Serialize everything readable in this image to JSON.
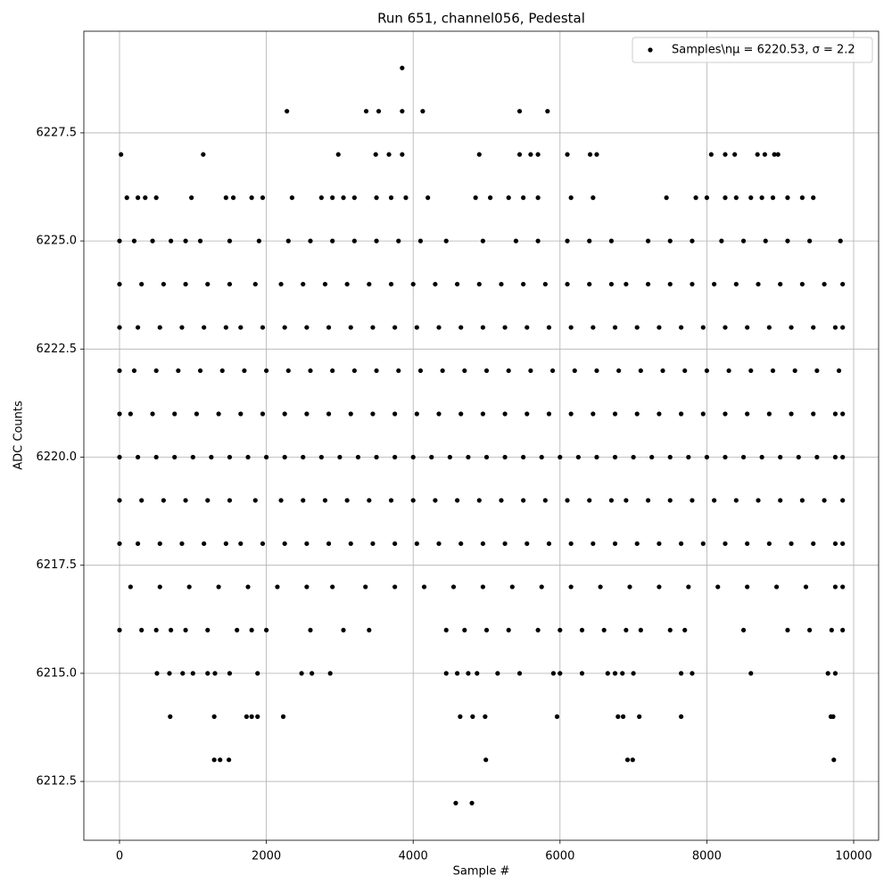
{
  "chart_data": {
    "type": "scatter",
    "title": "Run 651, channel056, Pedestal",
    "x_label": "Sample #",
    "y_label": "ADC Counts",
    "xlim": [
      -486,
      10340
    ],
    "ylim": [
      6211.14,
      6229.85
    ],
    "xticks": [
      0,
      2000,
      4000,
      6000,
      8000,
      10000
    ],
    "yticks": [
      6212.5,
      {
        "value": 6215,
        "label": "6215.0"
      },
      6217.5,
      {
        "value": 6220,
        "label": "6220.0"
      },
      6222.5,
      {
        "value": 6225,
        "label": "6225.0"
      },
      6227.5
    ],
    "grid": true,
    "legend_position": "upper right",
    "series": [
      {
        "name": "Samples\\nμ = 6220.53, σ = 2.2",
        "color": "#000000",
        "x": [
          3850,
          2280,
          3360,
          3530,
          3850,
          4130,
          5450,
          5830,
          20,
          1140,
          2980,
          3490,
          3670,
          3850,
          4900,
          5450,
          5600,
          5700,
          6100,
          6410,
          6500,
          8060,
          8250,
          8380,
          8690,
          8790,
          8920,
          8970,
          100,
          250,
          350,
          500,
          980,
          1450,
          1550,
          1800,
          1950,
          2350,
          2750,
          2900,
          3050,
          3200,
          3500,
          3700,
          3900,
          4200,
          4850,
          5050,
          5300,
          5500,
          5700,
          6150,
          6450,
          7450,
          7850,
          8000,
          8250,
          8400,
          8600,
          8750,
          8900,
          9100,
          9300,
          9450,
          0,
          200,
          450,
          700,
          900,
          1100,
          1500,
          1900,
          2300,
          2600,
          2900,
          3200,
          3500,
          3800,
          4100,
          4450,
          4950,
          5400,
          5700,
          6100,
          6400,
          6700,
          7200,
          7500,
          7800,
          8200,
          8500,
          8800,
          9100,
          9400,
          9820,
          0,
          300,
          600,
          900,
          1200,
          1500,
          1850,
          2200,
          2500,
          2800,
          3100,
          3400,
          3700,
          4000,
          4300,
          4600,
          4900,
          5200,
          5500,
          5800,
          6100,
          6400,
          6700,
          6900,
          7200,
          7500,
          7800,
          8100,
          8400,
          8700,
          9000,
          9300,
          9600,
          9850,
          0,
          250,
          550,
          850,
          1150,
          1450,
          1650,
          1950,
          2250,
          2550,
          2850,
          3150,
          3450,
          3750,
          4050,
          4350,
          4650,
          4950,
          5250,
          5550,
          5850,
          6150,
          6450,
          6750,
          7050,
          7350,
          7650,
          7950,
          8250,
          8550,
          8850,
          9150,
          9450,
          9750,
          9850,
          0,
          200,
          500,
          800,
          1100,
          1400,
          1700,
          2000,
          2300,
          2600,
          2900,
          3200,
          3500,
          3800,
          4100,
          4400,
          4700,
          5000,
          5300,
          5600,
          5900,
          6200,
          6500,
          6800,
          7100,
          7400,
          7700,
          8000,
          8300,
          8600,
          8900,
          9200,
          9500,
          9800,
          0,
          150,
          450,
          750,
          1050,
          1350,
          1650,
          1950,
          2250,
          2550,
          2850,
          3150,
          3450,
          3750,
          4050,
          4350,
          4650,
          4950,
          5250,
          5550,
          5850,
          6150,
          6450,
          6750,
          7050,
          7350,
          7650,
          7950,
          8250,
          8550,
          8850,
          9150,
          9450,
          9750,
          9850,
          0,
          250,
          500,
          750,
          1000,
          1250,
          1500,
          1750,
          2000,
          2250,
          2500,
          2750,
          3000,
          3250,
          3500,
          3750,
          4000,
          4250,
          4500,
          4750,
          5000,
          5250,
          5500,
          5750,
          6000,
          6250,
          6500,
          6750,
          7000,
          7250,
          7500,
          7750,
          8000,
          8250,
          8500,
          8750,
          9000,
          9250,
          9500,
          9750,
          9850,
          0,
          300,
          600,
          900,
          1200,
          1500,
          1850,
          2200,
          2500,
          2800,
          3100,
          3400,
          3700,
          4000,
          4300,
          4600,
          4900,
          5200,
          5500,
          5800,
          6100,
          6400,
          6700,
          6900,
          7200,
          7500,
          7800,
          8100,
          8400,
          8700,
          9000,
          9300,
          9600,
          9850,
          0,
          250,
          550,
          850,
          1150,
          1450,
          1650,
          1950,
          2250,
          2550,
          2850,
          3150,
          3450,
          3750,
          4050,
          4350,
          4650,
          4950,
          5250,
          5550,
          5850,
          6150,
          6450,
          6750,
          7050,
          7350,
          7650,
          7950,
          8250,
          8550,
          8850,
          9150,
          9450,
          9750,
          9850,
          150,
          550,
          950,
          1350,
          1750,
          2150,
          2550,
          2900,
          3350,
          3750,
          4150,
          4550,
          4950,
          5350,
          5750,
          6150,
          6550,
          6950,
          7350,
          7750,
          8150,
          8550,
          8950,
          9350,
          9750,
          9850,
          0,
          300,
          500,
          700,
          900,
          1200,
          1600,
          1800,
          2000,
          2600,
          3050,
          3400,
          4450,
          4700,
          5000,
          5300,
          5700,
          6000,
          6300,
          6600,
          6900,
          7100,
          7500,
          7700,
          8500,
          9100,
          9400,
          9700,
          9850,
          510,
          680,
          860,
          1000,
          1200,
          1300,
          1500,
          1880,
          2480,
          2620,
          2870,
          4450,
          4600,
          4750,
          4870,
          5150,
          5450,
          5910,
          6000,
          6300,
          6650,
          6750,
          6850,
          7000,
          7650,
          7800,
          8600,
          9650,
          9750,
          690,
          1290,
          1730,
          1800,
          1880,
          2230,
          4640,
          4810,
          4980,
          5960,
          6790,
          6860,
          7080,
          7650,
          9690,
          9720,
          1290,
          1370,
          1490,
          4990,
          6920,
          6990,
          9730,
          4580,
          4800
        ],
        "values": [
          6229,
          6228,
          6228,
          6228,
          6228,
          6228,
          6228,
          6228,
          6227,
          6227,
          6227,
          6227,
          6227,
          6227,
          6227,
          6227,
          6227,
          6227,
          6227,
          6227,
          6227,
          6227,
          6227,
          6227,
          6227,
          6227,
          6227,
          6227,
          6226,
          6226,
          6226,
          6226,
          6226,
          6226,
          6226,
          6226,
          6226,
          6226,
          6226,
          6226,
          6226,
          6226,
          6226,
          6226,
          6226,
          6226,
          6226,
          6226,
          6226,
          6226,
          6226,
          6226,
          6226,
          6226,
          6226,
          6226,
          6226,
          6226,
          6226,
          6226,
          6226,
          6226,
          6226,
          6226,
          6225,
          6225,
          6225,
          6225,
          6225,
          6225,
          6225,
          6225,
          6225,
          6225,
          6225,
          6225,
          6225,
          6225,
          6225,
          6225,
          6225,
          6225,
          6225,
          6225,
          6225,
          6225,
          6225,
          6225,
          6225,
          6225,
          6225,
          6225,
          6225,
          6225,
          6225,
          6224,
          6224,
          6224,
          6224,
          6224,
          6224,
          6224,
          6224,
          6224,
          6224,
          6224,
          6224,
          6224,
          6224,
          6224,
          6224,
          6224,
          6224,
          6224,
          6224,
          6224,
          6224,
          6224,
          6224,
          6224,
          6224,
          6224,
          6224,
          6224,
          6224,
          6224,
          6224,
          6224,
          6224,
          6223,
          6223,
          6223,
          6223,
          6223,
          6223,
          6223,
          6223,
          6223,
          6223,
          6223,
          6223,
          6223,
          6223,
          6223,
          6223,
          6223,
          6223,
          6223,
          6223,
          6223,
          6223,
          6223,
          6223,
          6223,
          6223,
          6223,
          6223,
          6223,
          6223,
          6223,
          6223,
          6223,
          6223,
          6223,
          6222,
          6222,
          6222,
          6222,
          6222,
          6222,
          6222,
          6222,
          6222,
          6222,
          6222,
          6222,
          6222,
          6222,
          6222,
          6222,
          6222,
          6222,
          6222,
          6222,
          6222,
          6222,
          6222,
          6222,
          6222,
          6222,
          6222,
          6222,
          6222,
          6222,
          6222,
          6222,
          6222,
          6222,
          6221,
          6221,
          6221,
          6221,
          6221,
          6221,
          6221,
          6221,
          6221,
          6221,
          6221,
          6221,
          6221,
          6221,
          6221,
          6221,
          6221,
          6221,
          6221,
          6221,
          6221,
          6221,
          6221,
          6221,
          6221,
          6221,
          6221,
          6221,
          6221,
          6221,
          6221,
          6221,
          6221,
          6221,
          6221,
          6220,
          6220,
          6220,
          6220,
          6220,
          6220,
          6220,
          6220,
          6220,
          6220,
          6220,
          6220,
          6220,
          6220,
          6220,
          6220,
          6220,
          6220,
          6220,
          6220,
          6220,
          6220,
          6220,
          6220,
          6220,
          6220,
          6220,
          6220,
          6220,
          6220,
          6220,
          6220,
          6220,
          6220,
          6220,
          6220,
          6220,
          6220,
          6220,
          6220,
          6220,
          6219,
          6219,
          6219,
          6219,
          6219,
          6219,
          6219,
          6219,
          6219,
          6219,
          6219,
          6219,
          6219,
          6219,
          6219,
          6219,
          6219,
          6219,
          6219,
          6219,
          6219,
          6219,
          6219,
          6219,
          6219,
          6219,
          6219,
          6219,
          6219,
          6219,
          6219,
          6219,
          6219,
          6219,
          6218,
          6218,
          6218,
          6218,
          6218,
          6218,
          6218,
          6218,
          6218,
          6218,
          6218,
          6218,
          6218,
          6218,
          6218,
          6218,
          6218,
          6218,
          6218,
          6218,
          6218,
          6218,
          6218,
          6218,
          6218,
          6218,
          6218,
          6218,
          6218,
          6218,
          6218,
          6218,
          6218,
          6218,
          6218,
          6217,
          6217,
          6217,
          6217,
          6217,
          6217,
          6217,
          6217,
          6217,
          6217,
          6217,
          6217,
          6217,
          6217,
          6217,
          6217,
          6217,
          6217,
          6217,
          6217,
          6217,
          6217,
          6217,
          6217,
          6217,
          6217,
          6216,
          6216,
          6216,
          6216,
          6216,
          6216,
          6216,
          6216,
          6216,
          6216,
          6216,
          6216,
          6216,
          6216,
          6216,
          6216,
          6216,
          6216,
          6216,
          6216,
          6216,
          6216,
          6216,
          6216,
          6216,
          6216,
          6216,
          6216,
          6216,
          6215,
          6215,
          6215,
          6215,
          6215,
          6215,
          6215,
          6215,
          6215,
          6215,
          6215,
          6215,
          6215,
          6215,
          6215,
          6215,
          6215,
          6215,
          6215,
          6215,
          6215,
          6215,
          6215,
          6215,
          6215,
          6215,
          6215,
          6215,
          6215,
          6214,
          6214,
          6214,
          6214,
          6214,
          6214,
          6214,
          6214,
          6214,
          6214,
          6214,
          6214,
          6214,
          6214,
          6214,
          6214,
          6213,
          6213,
          6213,
          6213,
          6213,
          6213,
          6213,
          6212,
          6212
        ]
      }
    ]
  }
}
